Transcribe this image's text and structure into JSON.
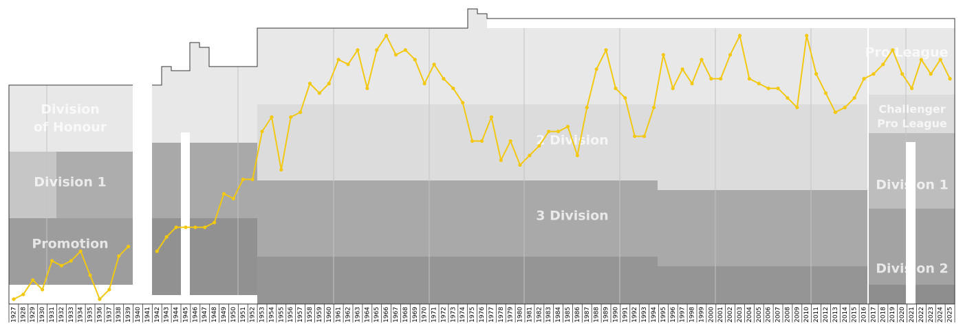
{
  "chart_data": {
    "type": "line",
    "x": [
      1927,
      1928,
      1929,
      1930,
      1931,
      1932,
      1933,
      1934,
      1935,
      1936,
      1937,
      1938,
      1939,
      1940,
      1941,
      1942,
      1943,
      1944,
      1945,
      1946,
      1947,
      1948,
      1949,
      1950,
      1951,
      1952,
      1953,
      1954,
      1955,
      1956,
      1957,
      1958,
      1959,
      1960,
      1961,
      1962,
      1963,
      1964,
      1965,
      1966,
      1967,
      1968,
      1969,
      1970,
      1971,
      1972,
      1973,
      1974,
      1975,
      1976,
      1977,
      1978,
      1979,
      1980,
      1981,
      1982,
      1983,
      1984,
      1985,
      1986,
      1987,
      1988,
      1989,
      1990,
      1991,
      1992,
      1993,
      1994,
      1995,
      1996,
      1997,
      1998,
      1999,
      2000,
      2001,
      2002,
      2003,
      2004,
      2005,
      2006,
      2007,
      2008,
      2009,
      2010,
      2011,
      2012,
      2013,
      2014,
      2015,
      2016,
      2017,
      2018,
      2019,
      2020,
      2021,
      2022,
      2023,
      2024,
      2025
    ],
    "series": [
      {
        "color": "#f2c811",
        "values": [
          56,
          55,
          52,
          54,
          48,
          49,
          48,
          46,
          51,
          56,
          54,
          47,
          45,
          null,
          null,
          46,
          43,
          41,
          41,
          41,
          41,
          40,
          34,
          35,
          31,
          31,
          21,
          18,
          29,
          18,
          17,
          11,
          13,
          11,
          6,
          7,
          4,
          12,
          4,
          1,
          5,
          4,
          6,
          11,
          7,
          10,
          12,
          15,
          23,
          23,
          18,
          27,
          23,
          28,
          26,
          24,
          21,
          21,
          20,
          26,
          16,
          8,
          4,
          12,
          14,
          22,
          22,
          16,
          5,
          12,
          8,
          11,
          6,
          10,
          10,
          5,
          1,
          10,
          11,
          12,
          12,
          14,
          16,
          1,
          9,
          13,
          17,
          16,
          14,
          10,
          9,
          7,
          4,
          9,
          12,
          6,
          9,
          6,
          10
        ]
      }
    ],
    "xlim": [
      1926.5,
      2025.5
    ],
    "ylim": [
      57,
      -5
    ],
    "annotations": [
      "Division",
      "of Honour",
      "Division 1",
      "Promotion",
      "Pro League",
      "2 Division",
      "3 Division",
      "Challenger",
      "Pro League",
      "Division 1",
      "Division 2"
    ]
  }
}
